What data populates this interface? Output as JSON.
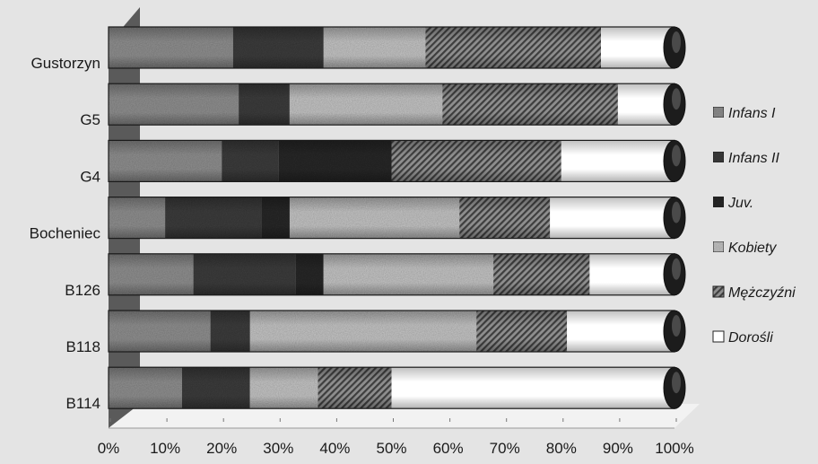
{
  "chart_data": {
    "type": "bar",
    "orientation": "horizontal",
    "stacked": true,
    "percent": true,
    "three_d": true,
    "title": "",
    "xlabel": "",
    "ylabel": "",
    "xlim": [
      0,
      100
    ],
    "x_ticks": [
      "0%",
      "10%",
      "20%",
      "30%",
      "40%",
      "50%",
      "60%",
      "70%",
      "80%",
      "90%",
      "100%"
    ],
    "categories": [
      "Gustorzyn",
      "G5",
      "G4",
      "Bocheniec",
      "B126",
      "B118",
      "B114"
    ],
    "series": [
      {
        "name": "Infans I",
        "color": "#8a8a8a",
        "pattern": "speckle",
        "values": [
          22,
          23,
          20,
          10,
          15,
          18,
          13
        ]
      },
      {
        "name": "Infans II",
        "color": "#3a3a3a",
        "pattern": "speckle",
        "values": [
          16,
          9,
          10,
          17,
          18,
          7,
          12
        ]
      },
      {
        "name": "Juv.",
        "color": "#262626",
        "pattern": "speckle",
        "values": [
          0,
          0,
          20,
          5,
          5,
          0,
          0
        ]
      },
      {
        "name": "Kobiety",
        "color": "#bdbdbd",
        "pattern": "speckle",
        "values": [
          18,
          27,
          0,
          30,
          30,
          40,
          12
        ]
      },
      {
        "name": "Mężczyźni",
        "color": "#6a6a6a",
        "pattern": "hatch",
        "values": [
          31,
          31,
          30,
          16,
          17,
          16,
          13
        ]
      },
      {
        "name": "Dorośli",
        "color": "#ffffff",
        "pattern": "solid",
        "values": [
          13,
          10,
          20,
          22,
          15,
          19,
          50
        ]
      }
    ],
    "legend": {
      "position": "right",
      "entries": [
        "Infans I",
        "Infans II",
        "Juv.",
        "Kobiety",
        "Mężczyźni",
        "Dorośli"
      ]
    },
    "grid": false,
    "background_color": "#e4e4e4"
  }
}
